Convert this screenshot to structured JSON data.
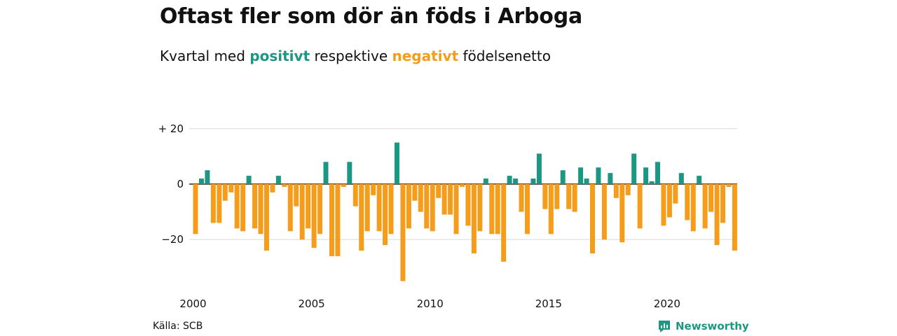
{
  "header": {
    "title": "Oftast fler som dör än föds i Arboga",
    "subtitle_pre": "Kvartal med",
    "subtitle_pos": "positivt",
    "subtitle_mid": "respektive",
    "subtitle_neg": "negativt",
    "subtitle_post": "födelsenetto"
  },
  "footer": {
    "source": "Källa: SCB",
    "brand": "Newsworthy",
    "brand_icon": "newsworthy-logo-icon"
  },
  "colors": {
    "positive": "#1b9783",
    "negative": "#f59d1a",
    "grid": "#d9d9d9",
    "zero_line": "#222222"
  },
  "chart_data": {
    "type": "bar",
    "x_unit": "quarter",
    "x_start": "2000 Q1",
    "x_ticks": [
      "2000",
      "2005",
      "2010",
      "2015",
      "2020"
    ],
    "y_ticks": [
      {
        "value": 20,
        "label": "+ 20"
      },
      {
        "value": 0,
        "label": "0"
      },
      {
        "value": -20,
        "label": "−20"
      }
    ],
    "ylim": [
      -36,
      20
    ],
    "grid": true,
    "values": [
      -18,
      2,
      5,
      -14,
      -14,
      -6,
      -3,
      -16,
      -17,
      3,
      -16,
      -18,
      -24,
      -3,
      3,
      -1,
      -17,
      -8,
      -20,
      -16,
      -23,
      -18,
      8,
      -26,
      -26,
      -1,
      8,
      -8,
      -24,
      -17,
      -4,
      -17,
      -22,
      -18,
      15,
      -35,
      -16,
      -6,
      -10,
      -16,
      -17,
      -5,
      -11,
      -11,
      -18,
      -1,
      -15,
      -25,
      -17,
      2,
      -18,
      -18,
      -28,
      3,
      2,
      -10,
      -18,
      2,
      11,
      -9,
      -18,
      -9,
      5,
      -9,
      -10,
      6,
      2,
      -25,
      6,
      -20,
      4,
      -5,
      -21,
      -4,
      11,
      -16,
      6,
      1,
      8,
      -15,
      -12,
      -7,
      4,
      -13,
      -17,
      3,
      -16,
      -10,
      -22,
      -14,
      -1,
      -24
    ]
  }
}
